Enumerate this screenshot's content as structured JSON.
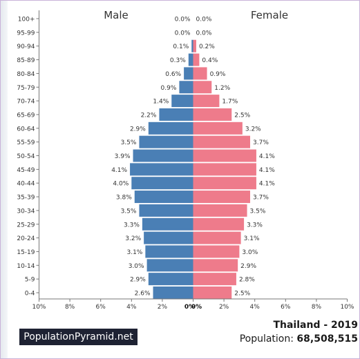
{
  "chart_data": {
    "type": "bar",
    "orientation": "horizontal-pyramid",
    "categories": [
      "100+",
      "95-99",
      "90-94",
      "85-89",
      "80-84",
      "75-79",
      "70-74",
      "65-69",
      "60-64",
      "55-59",
      "50-54",
      "45-49",
      "40-44",
      "35-39",
      "30-34",
      "25-29",
      "20-24",
      "15-19",
      "10-14",
      "5-9",
      "0-4"
    ],
    "series": [
      {
        "name": "Male",
        "color": "#4a7fb5",
        "values": [
          0.0,
          0.0,
          0.1,
          0.3,
          0.6,
          0.9,
          1.4,
          2.2,
          2.9,
          3.5,
          3.9,
          4.1,
          4.0,
          3.8,
          3.5,
          3.3,
          3.2,
          3.1,
          3.0,
          2.9,
          2.6
        ],
        "labels": [
          "0.0%",
          "0.0%",
          "0.1%",
          "0.3%",
          "0.6%",
          "0.9%",
          "1.4%",
          "2.2%",
          "2.9%",
          "3.5%",
          "3.9%",
          "4.1%",
          "4.0%",
          "3.8%",
          "3.5%",
          "3.3%",
          "3.2%",
          "3.1%",
          "3.0%",
          "2.9%",
          "2.6%"
        ]
      },
      {
        "name": "Female",
        "color": "#ee7b8b",
        "values": [
          0.0,
          0.0,
          0.2,
          0.4,
          0.9,
          1.2,
          1.7,
          2.5,
          3.2,
          3.7,
          4.1,
          4.1,
          4.1,
          3.7,
          3.5,
          3.3,
          3.1,
          3.0,
          2.9,
          2.8,
          2.5
        ],
        "labels": [
          "0.0%",
          "0.0%",
          "0.2%",
          "0.4%",
          "0.9%",
          "1.2%",
          "1.7%",
          "2.5%",
          "3.2%",
          "3.7%",
          "4.1%",
          "4.1%",
          "4.1%",
          "3.7%",
          "3.5%",
          "3.3%",
          "3.1%",
          "3.0%",
          "2.9%",
          "2.8%",
          "2.5%"
        ]
      }
    ],
    "x_ticks": [
      "10%",
      "8%",
      "6%",
      "4%",
      "2%",
      "0%",
      "0%",
      "2%",
      "4%",
      "6%",
      "8%",
      "10%"
    ],
    "xlim": [
      -10,
      10
    ],
    "grid": false
  },
  "branding": "PopulationPyramid.net",
  "country_year": "Thailand - 2019",
  "population_label": "Population:",
  "population_value": "68,508,515"
}
